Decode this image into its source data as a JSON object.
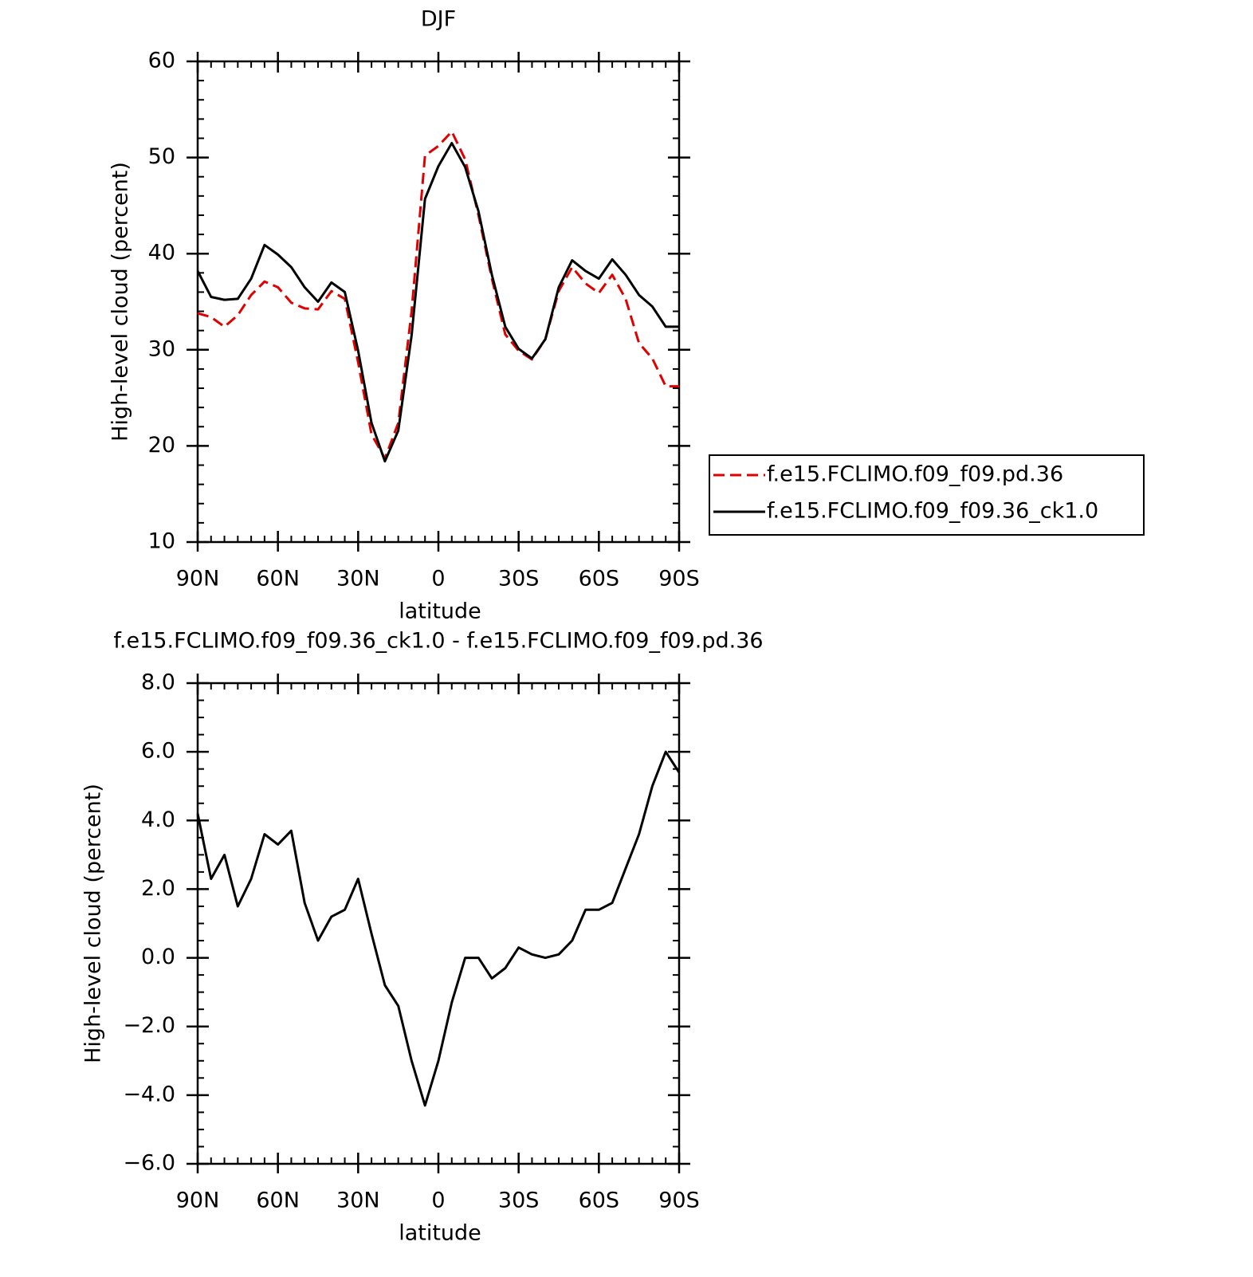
{
  "chart_data": [
    {
      "type": "line",
      "title": "DJF",
      "xlabel": "latitude",
      "ylabel": "High-level cloud (percent)",
      "x": [
        90,
        85,
        80,
        75,
        70,
        65,
        60,
        55,
        50,
        45,
        40,
        35,
        30,
        25,
        20,
        15,
        10,
        5,
        0,
        -5,
        -10,
        -15,
        -20,
        -25,
        -30,
        -35,
        -40,
        -45,
        -50,
        -55,
        -60,
        -65,
        -70,
        -75,
        -80,
        -85,
        -90
      ],
      "xlim": [
        90,
        -90
      ],
      "xticks": [
        {
          "value": 90,
          "label": "90N"
        },
        {
          "value": 60,
          "label": "60N"
        },
        {
          "value": 30,
          "label": "30N"
        },
        0,
        {
          "value": -30,
          "label": "30S"
        },
        {
          "value": -60,
          "label": "60S"
        },
        {
          "value": -90,
          "label": "90S"
        }
      ],
      "ylim": [
        10,
        60
      ],
      "yticks": [
        10,
        20,
        30,
        40,
        50,
        60
      ],
      "legend": "right",
      "series": [
        {
          "name": "f.e15.FCLIMO.f09_f09.pd.36",
          "color": "#e00000",
          "dash": true,
          "values": [
            33.8,
            33.4,
            32.4,
            33.6,
            35.7,
            37.1,
            36.5,
            34.9,
            34.3,
            34.2,
            36.1,
            35.3,
            28.7,
            21.2,
            18.7,
            22.4,
            34.0,
            50.2,
            51.2,
            52.7,
            49.8,
            44.0,
            37.4,
            31.6,
            29.9,
            29.0,
            31.1,
            36.1,
            38.6,
            36.9,
            35.9,
            37.8,
            35.3,
            30.7,
            29.1,
            26.2,
            26.2
          ]
        },
        {
          "name": "f.e15.FCLIMO.f09_f09.36_ck1.0",
          "color": "#000000",
          "dash": false,
          "values": [
            38.2,
            35.5,
            35.2,
            35.3,
            37.4,
            40.9,
            39.9,
            38.6,
            36.5,
            35.0,
            37.0,
            36.0,
            29.9,
            22.4,
            18.4,
            21.6,
            31.5,
            45.7,
            49.1,
            51.5,
            49.0,
            44.4,
            37.8,
            32.4,
            30.1,
            29.1,
            31.1,
            36.5,
            39.3,
            38.2,
            37.4,
            39.4,
            37.8,
            35.7,
            34.5,
            32.4,
            32.4
          ]
        }
      ]
    },
    {
      "type": "line",
      "title": "f.e15.FCLIMO.f09_f09.36_ck1.0 - f.e15.FCLIMO.f09_f09.pd.36",
      "xlabel": "latitude",
      "ylabel": "High-level cloud (percent)",
      "x": [
        90,
        85,
        80,
        75,
        70,
        65,
        60,
        55,
        50,
        45,
        40,
        35,
        30,
        25,
        20,
        15,
        10,
        5,
        0,
        -5,
        -10,
        -15,
        -20,
        -25,
        -30,
        -35,
        -40,
        -45,
        -50,
        -55,
        -60,
        -65,
        -70,
        -75,
        -80,
        -85,
        -90
      ],
      "xlim": [
        90,
        -90
      ],
      "xticks": [
        {
          "value": 90,
          "label": "90N"
        },
        {
          "value": 60,
          "label": "60N"
        },
        {
          "value": 30,
          "label": "30N"
        },
        0,
        {
          "value": -30,
          "label": "30S"
        },
        {
          "value": -60,
          "label": "60S"
        },
        {
          "value": -90,
          "label": "90S"
        }
      ],
      "ylim": [
        -6,
        8
      ],
      "yticks": [
        {
          "value": -6,
          "label": "−6.0"
        },
        {
          "value": -4,
          "label": "−4.0"
        },
        {
          "value": -2,
          "label": "−2.0"
        },
        {
          "value": 0,
          "label": "0.0"
        },
        {
          "value": 2,
          "label": "2.0"
        },
        {
          "value": 4,
          "label": "4.0"
        },
        {
          "value": 6,
          "label": "6.0"
        },
        {
          "value": 8,
          "label": "8.0"
        }
      ],
      "color": "#000000",
      "values": [
        4.2,
        2.3,
        3.0,
        1.5,
        2.3,
        3.6,
        3.3,
        3.7,
        1.6,
        0.5,
        1.2,
        1.4,
        2.3,
        0.7,
        -0.8,
        -1.4,
        -3.0,
        -4.3,
        -3.0,
        -1.3,
        0.0,
        0.0,
        -0.6,
        -0.3,
        0.3,
        0.1,
        0.0,
        0.1,
        0.5,
        1.4,
        1.4,
        1.6,
        2.6,
        3.6,
        5.0,
        6.0,
        5.4
      ]
    }
  ]
}
